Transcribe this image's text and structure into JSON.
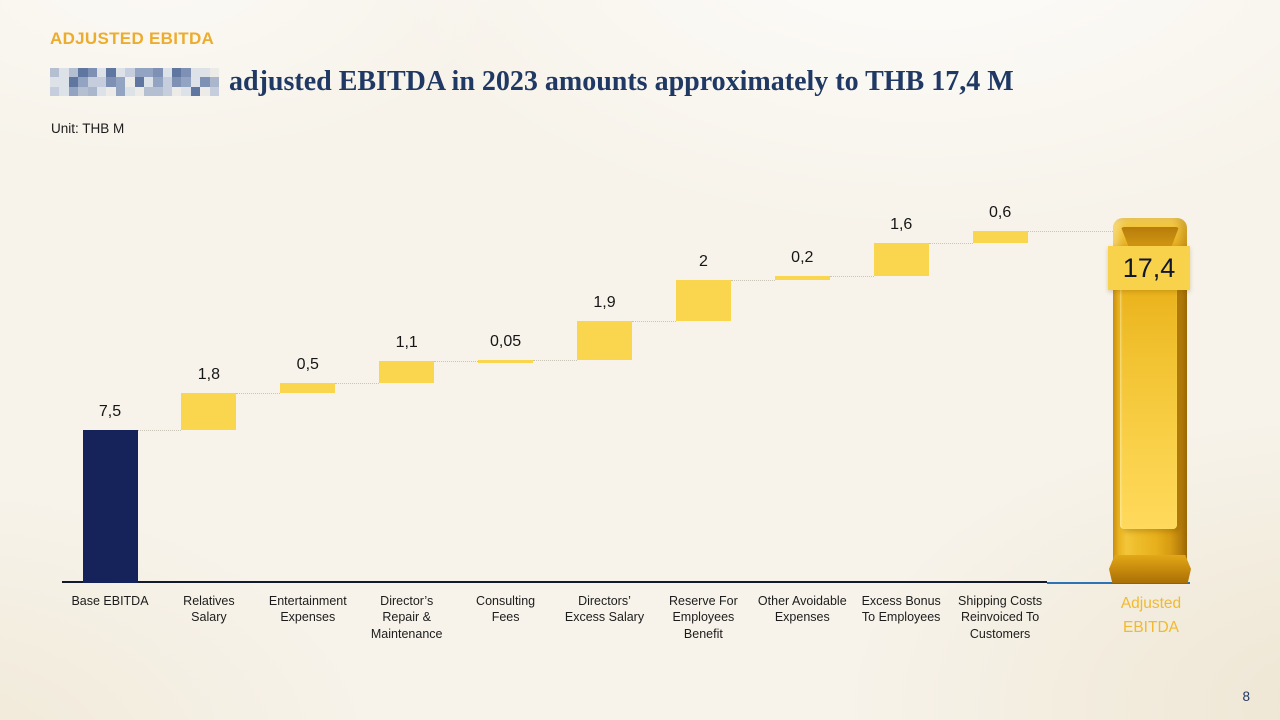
{
  "slide": {
    "eyebrow": "ADJUSTED EBITDA",
    "title_rest": "adjusted EBITDA in 2023 amounts approximately to THB 17,4 M",
    "unit_label": "Unit: THB M",
    "page_number": "8"
  },
  "colors": {
    "eyebrow_gold": "#ECAC2E",
    "title_navy": "#1F3864",
    "base_bar_navy": "#16235A",
    "delta_bar_yellow": "#FAD64F",
    "badge_yellow": "#F9D24B",
    "axis_dark": "#14192b",
    "axis_blue": "#2E74B5",
    "gold_label": "#F2B92D",
    "value_text": "#161616"
  },
  "chart_data": {
    "type": "bar",
    "subtype": "waterfall",
    "unit": "THB M",
    "title": "Adjusted EBITDA bridge 2023",
    "ylim": [
      0,
      17.4
    ],
    "grid": false,
    "total_display": "17,4",
    "total_value": 17.4,
    "total_label": "Adjusted EBITDA",
    "total_label_lines": [
      "Adjusted",
      "EBITDA"
    ],
    "steps": [
      {
        "label": "Base EBITDA",
        "label_lines": [
          "Base EBITDA"
        ],
        "value": 7.5,
        "display": "7,5",
        "role": "base"
      },
      {
        "label": "Relatives Salary",
        "label_lines": [
          "Relatives",
          "Salary"
        ],
        "value": 1.8,
        "display": "1,8",
        "role": "increase"
      },
      {
        "label": "Entertainment Expenses",
        "label_lines": [
          "Entertainment",
          "Expenses"
        ],
        "value": 0.5,
        "display": "0,5",
        "role": "increase"
      },
      {
        "label": "Director’s Repair & Maintenance",
        "label_lines": [
          "Director’s",
          "Repair &",
          "Maintenance"
        ],
        "value": 1.1,
        "display": "1,1",
        "role": "increase"
      },
      {
        "label": "Consulting Fees",
        "label_lines": [
          "Consulting",
          "Fees"
        ],
        "value": 0.05,
        "display": "0,05",
        "role": "increase"
      },
      {
        "label": "Directors’ Excess Salary",
        "label_lines": [
          "Directors’",
          "Excess Salary"
        ],
        "value": 1.9,
        "display": "1,9",
        "role": "increase"
      },
      {
        "label": "Reserve For Employees Benefit",
        "label_lines": [
          "Reserve For",
          "Employees",
          "Benefit"
        ],
        "value": 2,
        "display": "2",
        "role": "increase"
      },
      {
        "label": "Other Avoidable Expenses",
        "label_lines": [
          "Other Avoidable",
          "Expenses"
        ],
        "value": 0.2,
        "display": "0,2",
        "role": "increase"
      },
      {
        "label": "Excess Bonus To Employees",
        "label_lines": [
          "Excess Bonus",
          "To Employees"
        ],
        "value": 1.6,
        "display": "1,6",
        "role": "increase"
      },
      {
        "label": "Shipping Costs Reinvoiced To Customers",
        "label_lines": [
          "Shipping Costs",
          "Reinvoiced To",
          "Customers"
        ],
        "value": 0.6,
        "display": "0,6",
        "role": "increase"
      }
    ]
  }
}
